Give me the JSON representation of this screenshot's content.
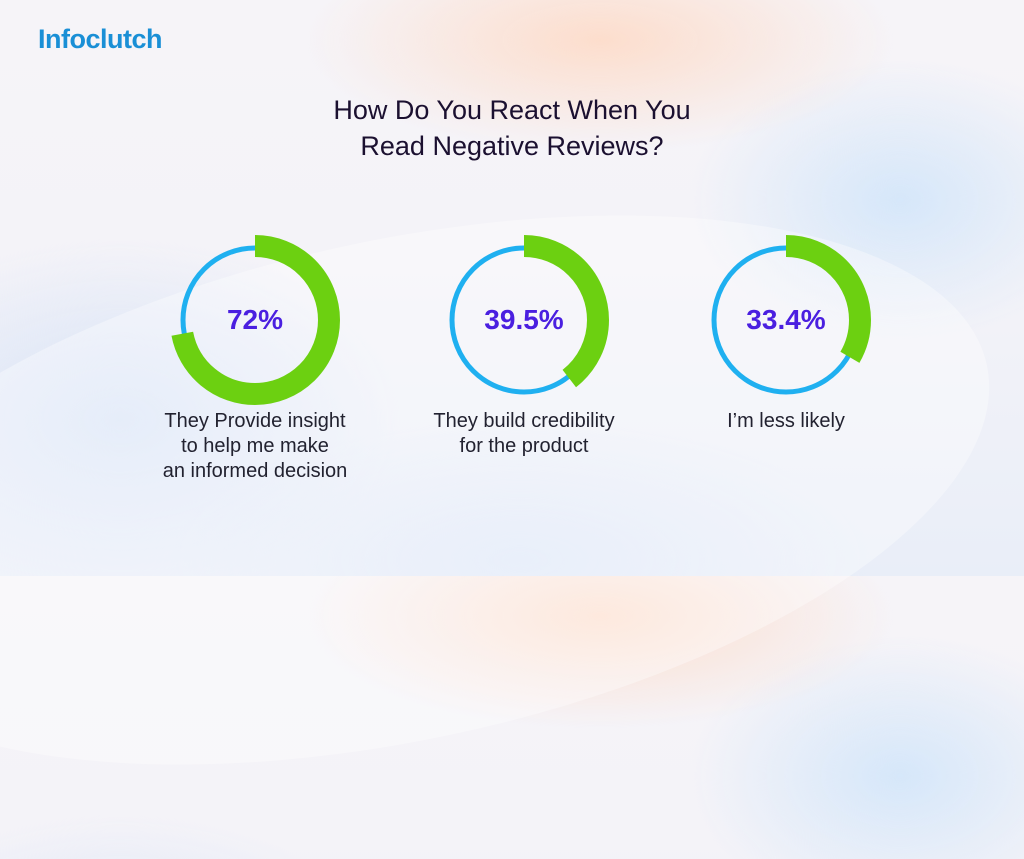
{
  "brand": {
    "logo_text": "Infoclutch",
    "color": "#1a8fd6"
  },
  "title": {
    "line1": "How Do You React When You",
    "line2": "Read Negative Reviews?"
  },
  "colors": {
    "ring_track": "#1fb0f0",
    "ring_fill": "#6cd011",
    "percent_text": "#4a1fe0",
    "title_text": "#1b1030",
    "label_text": "#222230"
  },
  "items": [
    {
      "value_label": "72%",
      "value": 72,
      "label_lines": [
        "They Provide insight",
        "to help me make",
        "an informed decision"
      ]
    },
    {
      "value_label": "39.5%",
      "value": 39.5,
      "label_lines": [
        "They build credibility",
        "for the product"
      ]
    },
    {
      "value_label": "33.4%",
      "value": 33.4,
      "label_lines": [
        "I’m less likely"
      ]
    }
  ],
  "chart_data": {
    "type": "pie",
    "subtype": "donut-progress",
    "title": "How Do You React When You Read Negative Reviews?",
    "categories": [
      "They Provide insight to help me make an informed decision",
      "They build credibility for the product",
      "I’m less likely"
    ],
    "values": [
      72,
      39.5,
      33.4
    ],
    "unit": "%",
    "max": 100,
    "legend": "none"
  }
}
